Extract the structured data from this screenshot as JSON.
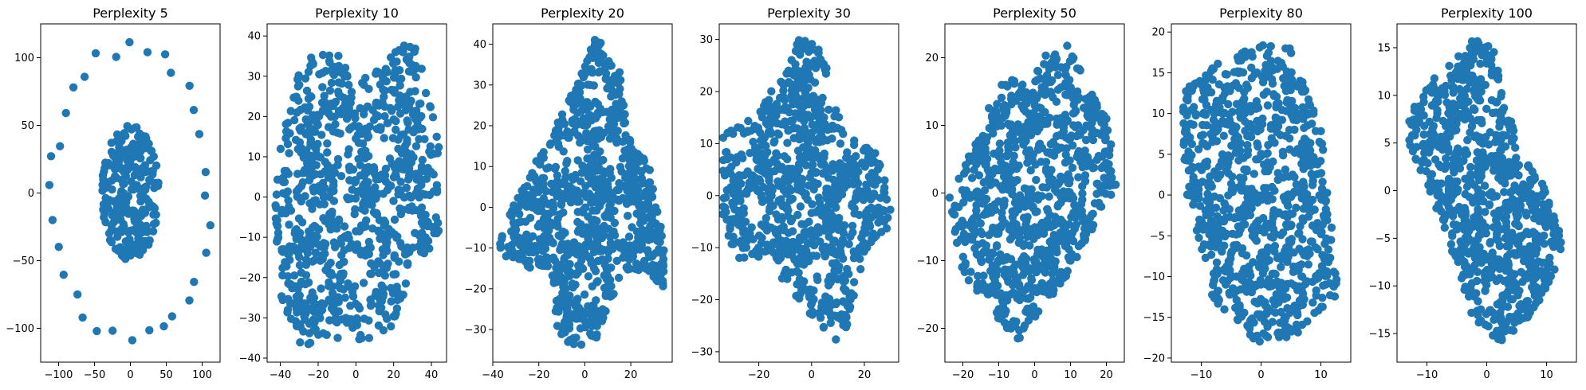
{
  "figure": {
    "background": "#ffffff",
    "point_color": "#1f77b4"
  },
  "chart_data": [
    {
      "type": "scatter",
      "title": "Perplexity 5",
      "xlim": [
        -125,
        125
      ],
      "ylim": [
        -125,
        125
      ],
      "xticks": [
        -100,
        -50,
        0,
        50,
        100
      ],
      "yticks": [
        -100,
        -50,
        0,
        50,
        100
      ],
      "shape": "rings",
      "cluster": {
        "cx": 0,
        "cy": 0,
        "rx": 40,
        "ry": 50,
        "count": 260
      },
      "ring": {
        "cx": 0,
        "cy": 0,
        "rx": 110,
        "ry": 110,
        "count": 32
      }
    },
    {
      "type": "scatter",
      "title": "Perplexity 10",
      "xlim": [
        -47,
        48
      ],
      "ylim": [
        -41,
        43
      ],
      "xticks": [
        -40,
        -20,
        0,
        20,
        40
      ],
      "yticks": [
        -40,
        -30,
        -20,
        -10,
        0,
        10,
        20,
        30,
        40
      ],
      "shape": "strands",
      "polygon": [
        [
          -40,
          13
        ],
        [
          -28,
          35
        ],
        [
          -10,
          36
        ],
        [
          5,
          30
        ],
        [
          30,
          40
        ],
        [
          40,
          25
        ],
        [
          44,
          12
        ],
        [
          44,
          -10
        ],
        [
          28,
          -20
        ],
        [
          20,
          -32
        ],
        [
          10,
          -35
        ],
        [
          -30,
          -37
        ],
        [
          -40,
          -25
        ],
        [
          -44,
          -5
        ]
      ],
      "count": 900
    },
    {
      "type": "scatter",
      "title": "Perplexity 20",
      "xlim": [
        -40,
        38
      ],
      "ylim": [
        -38,
        45
      ],
      "xticks": [
        -40,
        -20,
        0,
        20
      ],
      "yticks": [
        -30,
        -20,
        -10,
        0,
        10,
        20,
        30,
        40
      ],
      "shape": "strands",
      "polygon": [
        [
          -38,
          -10
        ],
        [
          -30,
          2
        ],
        [
          -15,
          18
        ],
        [
          -8,
          25
        ],
        [
          0,
          35
        ],
        [
          5,
          42
        ],
        [
          15,
          35
        ],
        [
          18,
          20
        ],
        [
          28,
          10
        ],
        [
          35,
          -10
        ],
        [
          34,
          -20
        ],
        [
          25,
          -15
        ],
        [
          15,
          -18
        ],
        [
          5,
          -32
        ],
        [
          -5,
          -35
        ],
        [
          -12,
          -30
        ],
        [
          -15,
          -15
        ],
        [
          -25,
          -15
        ],
        [
          -35,
          -12
        ]
      ],
      "count": 950
    },
    {
      "type": "scatter",
      "title": "Perplexity 30",
      "xlim": [
        -35,
        33
      ],
      "ylim": [
        -32,
        33
      ],
      "xticks": [
        -20,
        0,
        20
      ],
      "yticks": [
        -30,
        -20,
        -10,
        0,
        10,
        20,
        30
      ],
      "shape": "strands",
      "polygon": [
        [
          -34,
          12
        ],
        [
          -20,
          16
        ],
        [
          -5,
          30
        ],
        [
          3,
          30
        ],
        [
          12,
          12
        ],
        [
          25,
          8
        ],
        [
          30,
          0
        ],
        [
          30,
          -6
        ],
        [
          20,
          -12
        ],
        [
          12,
          -28
        ],
        [
          8,
          -28
        ],
        [
          -5,
          -20
        ],
        [
          -18,
          -12
        ],
        [
          -28,
          -12
        ],
        [
          -34,
          -5
        ]
      ],
      "count": 950
    },
    {
      "type": "scatter",
      "title": "Perplexity 50",
      "xlim": [
        -25,
        25
      ],
      "ylim": [
        -25,
        25
      ],
      "xticks": [
        -20,
        -10,
        0,
        10,
        20
      ],
      "yticks": [
        -20,
        -10,
        0,
        10,
        20
      ],
      "shape": "band",
      "polygon": [
        [
          -24,
          -1
        ],
        [
          -10,
          16
        ],
        [
          5,
          21
        ],
        [
          9,
          22
        ],
        [
          21,
          10
        ],
        [
          23,
          1
        ],
        [
          8,
          -13
        ],
        [
          -5,
          -22
        ],
        [
          -20,
          -12
        ]
      ],
      "strands": {
        "direction": [
          1,
          -0.55
        ],
        "rings": [
          [
            -5,
            9
          ],
          [
            4,
            -9
          ]
        ]
      },
      "count": 950
    },
    {
      "type": "scatter",
      "title": "Perplexity 80",
      "xlim": [
        -15,
        15
      ],
      "ylim": [
        -20.5,
        21
      ],
      "xticks": [
        -10,
        0,
        10
      ],
      "yticks": [
        -20,
        -15,
        -10,
        -5,
        0,
        5,
        10,
        15,
        20
      ],
      "shape": "band",
      "polygon": [
        [
          -13,
          13
        ],
        [
          -8,
          16
        ],
        [
          0,
          18.5
        ],
        [
          5,
          18
        ],
        [
          10,
          8
        ],
        [
          13,
          -12
        ],
        [
          6,
          -17
        ],
        [
          0,
          -18.5
        ],
        [
          -8,
          -13
        ],
        [
          -13,
          2
        ]
      ],
      "strands": {
        "rings": [
          [
            -1,
            9
          ],
          [
            1,
            -9
          ]
        ]
      },
      "count": 950
    },
    {
      "type": "scatter",
      "title": "Perplexity 100",
      "xlim": [
        -15,
        15
      ],
      "ylim": [
        -18,
        17.5
      ],
      "xticks": [
        -10,
        0,
        10
      ],
      "yticks": [
        -15,
        -10,
        -5,
        0,
        5,
        10,
        15
      ],
      "shape": "band",
      "polygon": [
        [
          -13,
          8.5
        ],
        [
          -10,
          11
        ],
        [
          -2,
          16
        ],
        [
          1,
          15
        ],
        [
          5,
          5
        ],
        [
          10,
          0
        ],
        [
          13,
          -6
        ],
        [
          8,
          -13
        ],
        [
          2,
          -16
        ],
        [
          -2,
          -14
        ],
        [
          -6,
          -6
        ],
        [
          -13,
          5
        ]
      ],
      "strands": {
        "direction": [
          1,
          -0.75
        ],
        "rings": [
          [
            -4,
            4
          ],
          [
            5,
            -5
          ]
        ]
      },
      "count": 950
    }
  ]
}
